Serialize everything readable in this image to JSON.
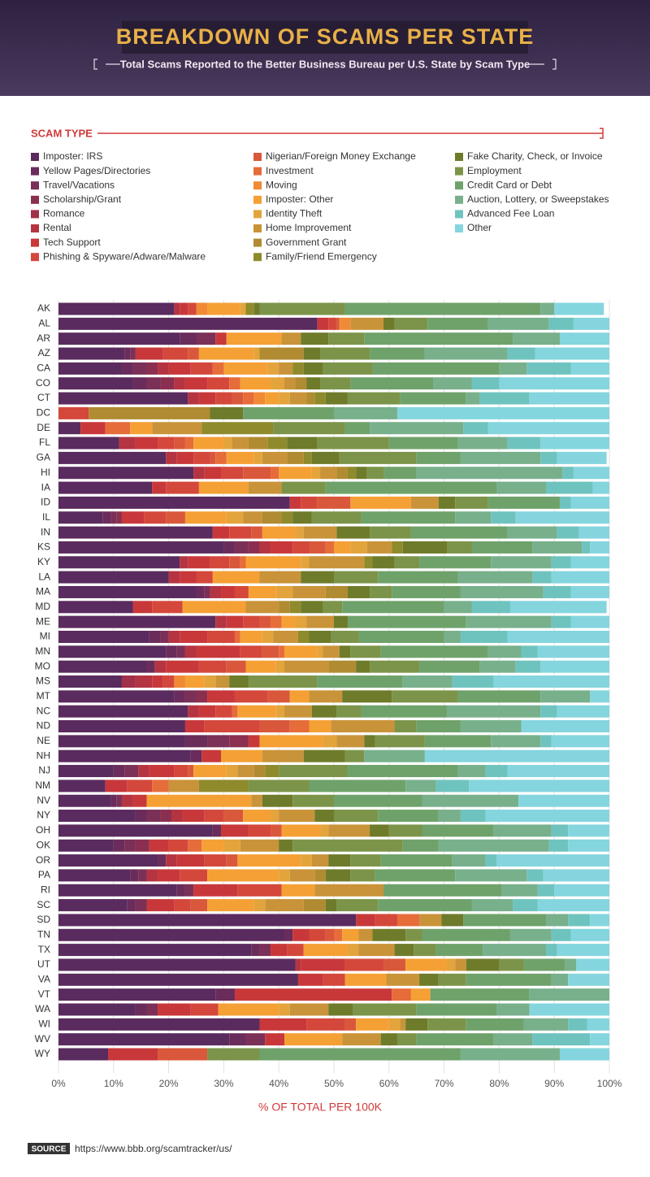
{
  "chart_data": {
    "type": "stacked-bar-horizontal",
    "title": "BREAKDOWN OF SCAMS PER STATE",
    "subtitle": "Total Scams Reported to the Better Business Bureau per U.S. State by Scam Type",
    "legend_title": "SCAM TYPE",
    "xlabel": "% OF TOTAL PER 100K",
    "source_label": "SOURCE",
    "source": "https://www.bbb.org/scamtracker/us/",
    "xlim": [
      0,
      100
    ],
    "xticks": [
      {
        "value": 0,
        "label": "0%"
      },
      {
        "value": 10,
        "label": "10%"
      },
      {
        "value": 20,
        "label": "20%"
      },
      {
        "value": 30,
        "label": "30%"
      },
      {
        "value": 40,
        "label": "40%"
      },
      {
        "value": 50,
        "label": "50%"
      },
      {
        "value": 60,
        "label": "60%"
      },
      {
        "value": 70,
        "label": "70%"
      },
      {
        "value": 80,
        "label": "80%"
      },
      {
        "value": 90,
        "label": "90%"
      },
      {
        "value": 100,
        "label": "100%"
      }
    ],
    "grid": true,
    "categories": [
      "AK",
      "AL",
      "AR",
      "AZ",
      "CA",
      "CO",
      "CT",
      "DC",
      "DE",
      "FL",
      "GA",
      "HI",
      "IA",
      "ID",
      "IL",
      "IN",
      "KS",
      "KY",
      "LA",
      "MA",
      "MD",
      "ME",
      "MI",
      "MN",
      "MO",
      "MS",
      "MT",
      "NC",
      "ND",
      "NE",
      "NH",
      "NJ",
      "NM",
      "NV",
      "NY",
      "OH",
      "OK",
      "OR",
      "PA",
      "RI",
      "SC",
      "SD",
      "TN",
      "TX",
      "UT",
      "VA",
      "VT",
      "WA",
      "WI",
      "WV",
      "WY"
    ],
    "series": [
      {
        "name": "Imposter: IRS",
        "color": "#5a2b5e",
        "values": [
          21,
          47,
          22,
          12,
          11.5,
          13.5,
          23.5,
          0,
          4,
          11,
          19.5,
          24.5,
          17,
          42,
          8,
          28,
          30,
          22,
          20,
          25,
          13.5,
          28.5,
          16.5,
          19.5,
          16,
          11.5,
          21,
          23.5,
          23,
          23,
          24,
          10,
          8.5,
          9.5,
          14,
          28,
          10,
          18,
          13,
          21.5,
          12.5,
          54,
          41,
          35,
          43,
          43.5,
          28.5,
          14,
          36.5,
          31,
          9
        ]
      },
      {
        "name": "Yellow Pages/Directories",
        "color": "#6a2c5b",
        "values": [
          0,
          0,
          3,
          1,
          2,
          2.5,
          0,
          0,
          0,
          0,
          0,
          0,
          0,
          0,
          1.5,
          0,
          2,
          0,
          0,
          1.5,
          0,
          0,
          2,
          2,
          1.5,
          0,
          2,
          0,
          0,
          4,
          2,
          2,
          0,
          1,
          2,
          1.5,
          2,
          1.5,
          1.5,
          1.5,
          1.5,
          0,
          1.5,
          1.5,
          0,
          0,
          3.5,
          2,
          0,
          3,
          0
        ]
      },
      {
        "name": "Travel/Vacations",
        "color": "#7b3058",
        "values": [
          0,
          0,
          3.5,
          1,
          2.5,
          2.5,
          0,
          0,
          0,
          0,
          0,
          0,
          0,
          0,
          1,
          0,
          2.5,
          0,
          0,
          1,
          0,
          0,
          1.5,
          1.5,
          0,
          0,
          2,
          0,
          0,
          4,
          0,
          2.5,
          0,
          1,
          2.5,
          0,
          2,
          0,
          1.5,
          1.5,
          2,
          0,
          0,
          2,
          0,
          0,
          0,
          2,
          0,
          3.5,
          0
        ]
      },
      {
        "name": "Scholarship/Grant",
        "color": "#8b2f50",
        "values": [
          0,
          0,
          0,
          0,
          2,
          2.5,
          0,
          0,
          0,
          0,
          0,
          0,
          0,
          0,
          1,
          0,
          2,
          0,
          0,
          0,
          0,
          0,
          0,
          0,
          0,
          0,
          2,
          0,
          0,
          3.5,
          0,
          0,
          0,
          0,
          2,
          0,
          2.5,
          0,
          0,
          0,
          0,
          0,
          0,
          0,
          0,
          0,
          0,
          0,
          0,
          0,
          0
        ]
      },
      {
        "name": "Romance",
        "color": "#a1304a",
        "values": [
          0,
          0,
          0,
          0,
          0,
          0,
          0,
          0,
          0,
          0,
          0,
          0,
          0,
          0,
          0,
          0,
          0,
          0,
          0,
          0,
          0,
          0,
          0,
          0,
          0,
          2.5,
          0,
          0,
          0,
          0,
          0,
          0,
          0,
          0,
          0,
          0,
          0,
          0,
          0,
          0,
          0,
          0,
          0,
          0,
          0,
          0,
          0,
          0,
          0,
          0,
          0
        ]
      },
      {
        "name": "Rental",
        "color": "#b53442",
        "values": [
          1,
          0,
          0,
          0,
          2,
          2,
          2,
          0,
          0,
          3,
          2,
          2,
          0,
          0,
          0,
          0,
          2,
          1.5,
          2,
          2,
          0,
          2,
          2,
          2,
          2,
          3,
          0,
          2,
          0,
          0,
          0,
          2,
          0,
          2,
          2,
          0,
          0,
          2,
          2,
          0,
          0,
          0,
          0,
          0,
          1,
          0,
          0,
          0,
          0,
          0,
          0
        ]
      },
      {
        "name": "Tech Support",
        "color": "#c8383a",
        "values": [
          1.5,
          2,
          2,
          5,
          4,
          4,
          3,
          0,
          4.5,
          4,
          3,
          3,
          2.5,
          2,
          4,
          3,
          4,
          4,
          3,
          2.5,
          3.5,
          3,
          5,
          8,
          6,
          2,
          5,
          3,
          3.5,
          2,
          3.5,
          4.5,
          4,
          2.5,
          4,
          5,
          3.5,
          5,
          4,
          8,
          5,
          3.5,
          3,
          3,
          8,
          4.5,
          28.5,
          6,
          8.5,
          3.5,
          9
        ]
      },
      {
        "name": "Phishing & Spyware/Adware/Malware",
        "color": "#d4483b",
        "values": [
          1.5,
          1.5,
          0,
          4.5,
          4,
          4,
          3,
          5.5,
          0,
          3,
          3,
          4,
          6,
          3,
          4,
          4,
          3,
          3.5,
          3,
          2.5,
          5.5,
          3,
          5,
          4,
          5,
          2,
          6,
          3,
          10,
          0,
          0,
          2.5,
          4.5,
          0,
          3.5,
          4,
          3.5,
          4,
          5,
          8,
          3,
          4,
          3,
          3,
          7,
          4,
          0,
          5,
          7,
          0,
          0
        ]
      },
      {
        "name": "Nigerian/Foreign Money Exchange",
        "color": "#d9583b",
        "values": [
          0,
          0.5,
          0,
          2,
          0,
          0,
          2,
          0,
          0,
          2,
          1,
          5,
          0,
          6,
          3.5,
          2,
          3,
          2,
          0,
          0,
          0,
          2,
          0,
          3,
          3.5,
          0,
          4,
          0,
          5.5,
          0,
          0,
          1,
          0,
          0,
          3.5,
          2,
          0,
          2,
          0,
          0,
          3,
          0,
          1.5,
          0,
          4,
          0,
          0,
          0,
          2,
          0,
          9
        ]
      },
      {
        "name": "Investment",
        "color": "#e66c3a",
        "values": [
          0,
          0,
          0,
          0,
          2,
          2,
          2,
          0,
          4.5,
          1.5,
          2,
          1.5,
          0,
          0,
          0,
          0,
          1.5,
          1,
          0,
          0,
          0,
          2,
          1,
          1,
          0,
          0,
          0,
          1,
          3.5,
          0,
          0,
          0,
          3,
          0,
          0,
          0,
          2.5,
          0,
          0,
          0,
          0,
          4,
          1.5,
          0,
          0,
          0,
          3.5,
          0,
          0,
          0,
          0
        ]
      },
      {
        "name": "Moving",
        "color": "#f08a36",
        "values": [
          2,
          2,
          0,
          0,
          0,
          0,
          2,
          0,
          0,
          0,
          0,
          0,
          0,
          0,
          0,
          0,
          0,
          0,
          0,
          0,
          0,
          0,
          0,
          0,
          0,
          2,
          0,
          0,
          0,
          0,
          0,
          0,
          0,
          0,
          0,
          0,
          0,
          0,
          0,
          0,
          0,
          0,
          0,
          0,
          0,
          0,
          0,
          0,
          0,
          0,
          0
        ]
      },
      {
        "name": "Imposter: Other",
        "color": "#f5a035",
        "values": [
          6,
          0,
          10,
          10,
          8,
          5.5,
          2.5,
          0,
          4,
          5.5,
          5,
          6,
          9,
          11,
          7.5,
          6,
          3,
          10,
          8.5,
          5,
          11.5,
          2.5,
          4,
          6,
          5.5,
          3.5,
          3.5,
          7,
          4,
          11.5,
          7.5,
          6,
          0,
          19,
          5,
          7,
          4,
          11.5,
          13,
          6,
          8.5,
          0,
          3,
          8,
          7.5,
          7.5,
          3.5,
          11,
          6,
          10.5,
          0
        ]
      },
      {
        "name": "Identity Theft",
        "color": "#e3a43c",
        "values": [
          1,
          0,
          0,
          1,
          2,
          2.5,
          2,
          0,
          0,
          1.5,
          1.5,
          1.5,
          0,
          0,
          3,
          1.5,
          3,
          1.5,
          0,
          3,
          0,
          2,
          2,
          1,
          1.5,
          2,
          0,
          1.5,
          0,
          2.5,
          0,
          2,
          0,
          0,
          1.5,
          1.5,
          3,
          2,
          2,
          0,
          2,
          0,
          0,
          2,
          1.5,
          0,
          0,
          2,
          2,
          0,
          0
        ]
      },
      {
        "name": "Home Improvement",
        "color": "#c99339",
        "values": [
          0,
          6,
          3.5,
          0,
          2.5,
          2,
          3,
          0,
          9,
          3,
          4.5,
          3,
          6,
          5,
          3.5,
          6,
          4.5,
          10,
          7.5,
          6,
          6,
          5,
          4.5,
          3,
          8,
          2.5,
          6,
          5,
          11.5,
          5,
          7.5,
          3,
          5.5,
          2,
          6.5,
          7.5,
          7,
          3,
          4.5,
          12.5,
          7,
          4,
          2.5,
          6.5,
          2,
          6,
          0,
          7,
          1,
          7,
          0
        ]
      },
      {
        "name": "Government Grant",
        "color": "#b08b31",
        "values": [
          0,
          0,
          0,
          8,
          0,
          2,
          1.5,
          22,
          0,
          3.5,
          3,
          2,
          0,
          0,
          3.5,
          0,
          0,
          0,
          0,
          4,
          2,
          0,
          0,
          0,
          5,
          0,
          0,
          0,
          0,
          0,
          0,
          2,
          0,
          0,
          0,
          0,
          0,
          0,
          2,
          0,
          4,
          0,
          0,
          0,
          0,
          0,
          0,
          0,
          0,
          0,
          0
        ]
      },
      {
        "name": "Family/Friend Emergency",
        "color": "#8f8a2c",
        "values": [
          1.5,
          0,
          0,
          0,
          2,
          0,
          2,
          0,
          13,
          3.5,
          1.5,
          1.5,
          0,
          0,
          2,
          0,
          2,
          1.5,
          0,
          0,
          2,
          0,
          2,
          0,
          0,
          0,
          0,
          0,
          0,
          0,
          0,
          2.5,
          9,
          0,
          0,
          0,
          0,
          0,
          0,
          0,
          0,
          0,
          0,
          0,
          0,
          0,
          0,
          0,
          0,
          0,
          0
        ]
      },
      {
        "name": "Fake Charity, Check, or Invoice",
        "color": "#6e7b2a",
        "values": [
          1,
          2,
          5,
          3,
          3.5,
          2.5,
          4,
          6,
          0,
          5.5,
          5,
          2,
          0,
          3,
          3.5,
          6,
          8,
          4,
          6,
          4,
          4,
          2.5,
          4,
          2,
          2.5,
          3.5,
          9,
          4.5,
          0,
          2,
          7.5,
          0,
          0,
          5.5,
          3.5,
          3.5,
          2.5,
          4,
          4.5,
          0,
          2,
          4,
          6,
          3.5,
          6,
          3.5,
          0,
          4.5,
          4,
          3,
          0
        ]
      },
      {
        "name": "Employment",
        "color": "#7c9449",
        "values": [
          15.5,
          6,
          6.5,
          9,
          9,
          5.5,
          9.5,
          0,
          13,
          13,
          14,
          3,
          8,
          6,
          9,
          7.5,
          4.5,
          4.5,
          8,
          4,
          3.5,
          0,
          5,
          5.5,
          9,
          12.5,
          12,
          4.5,
          4,
          9,
          3.5,
          12.5,
          11,
          7.5,
          8,
          6,
          20,
          5.5,
          4.5,
          0,
          7.5,
          0,
          3,
          4,
          4.5,
          5,
          0,
          11.5,
          7,
          3.5,
          9.5
        ]
      },
      {
        "name": "Credit Card or Debt",
        "color": "#6fa26a",
        "values": [
          35.5,
          11,
          27,
          10,
          23,
          15,
          12,
          16.5,
          4.5,
          12.5,
          8,
          6,
          31,
          13,
          17,
          17.5,
          11,
          13,
          14.5,
          12.5,
          18.5,
          21.5,
          15.5,
          19.5,
          11,
          15.5,
          15,
          15.5,
          8,
          12,
          0,
          20,
          17.5,
          16,
          11,
          13,
          6.5,
          13,
          14.5,
          21.5,
          17,
          15,
          16,
          8.5,
          7.5,
          15.5,
          18,
          14.5,
          10.5,
          14,
          36.5
        ]
      },
      {
        "name": "Auction, Lottery, or Sweepstakes",
        "color": "#78b08c",
        "values": [
          2.5,
          11,
          8.5,
          15,
          5,
          7,
          2.5,
          11.5,
          17,
          9,
          14.5,
          26.5,
          9,
          0,
          6.5,
          9,
          9,
          11,
          13.5,
          15,
          5,
          15.5,
          3,
          6,
          6.5,
          9,
          9,
          17,
          11,
          9,
          11,
          5,
          5.5,
          17.5,
          4,
          10.5,
          20,
          6,
          13,
          6.5,
          7.5,
          4,
          7.5,
          11.5,
          2,
          3,
          14.5,
          6,
          8,
          7,
          18
        ]
      },
      {
        "name": "Advanced Fee Loan",
        "color": "#6fc3bf",
        "values": [
          0,
          4.5,
          0,
          5,
          8,
          5,
          9,
          0,
          4.5,
          6,
          3,
          2,
          8.5,
          2,
          4.5,
          4,
          1.5,
          3.5,
          3.5,
          5,
          7,
          3.5,
          8.5,
          3,
          4.5,
          7.5,
          0,
          3,
          0,
          2,
          0,
          4,
          6,
          0,
          4.5,
          3,
          3.5,
          2,
          3,
          3,
          4.5,
          4,
          3.5,
          2,
          0,
          0,
          0,
          0,
          3.5,
          10.5,
          0
        ]
      },
      {
        "name": "Other",
        "color": "#84d5de",
        "values": [
          9,
          6.5,
          9,
          13.5,
          7,
          20,
          14.5,
          38.5,
          22,
          12.5,
          9,
          6.5,
          3,
          7,
          17,
          5.5,
          3.5,
          7,
          10.5,
          7,
          17.5,
          7,
          18.5,
          13,
          12.5,
          21,
          3.5,
          9.5,
          16,
          10.5,
          33.5,
          18.5,
          25.5,
          16.5,
          22.5,
          7.5,
          7.5,
          20.5,
          12,
          10,
          13,
          3.5,
          7,
          9.5,
          6,
          7.5,
          0,
          14.5,
          4,
          3.5,
          9
        ]
      }
    ]
  }
}
